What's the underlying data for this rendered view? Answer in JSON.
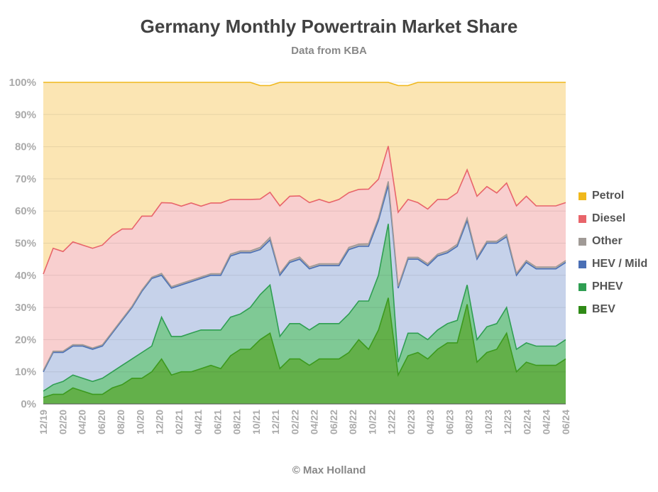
{
  "chart_data": {
    "type": "area",
    "title": "Germany Monthly Powertrain Market Share",
    "subtitle": "Data from KBA",
    "footer": "© Max Holland",
    "y_ticks": [
      "0%",
      "10%",
      "20%",
      "30%",
      "40%",
      "50%",
      "60%",
      "70%",
      "80%",
      "90%",
      "100%"
    ],
    "ylim": [
      0,
      100
    ],
    "x_ticks": [
      "12/19",
      "02/20",
      "04/20",
      "06/20",
      "08/20",
      "10/20",
      "12/20",
      "02/21",
      "04/21",
      "06/21",
      "08/21",
      "10/21",
      "12/21",
      "02/22",
      "04/22",
      "06/22",
      "08/22",
      "10/22",
      "12/22",
      "02/23",
      "04/23",
      "06/23",
      "08/23",
      "10/23",
      "12/23",
      "02/24",
      "04/24",
      "06/24"
    ],
    "grid": true,
    "legend_position": "right",
    "stacked": true,
    "series": [
      {
        "name": "BEV",
        "color": "#3c9a1e",
        "fill": "#63b04a",
        "values": [
          2,
          3,
          3,
          5,
          4,
          3,
          3,
          5,
          6,
          8,
          8,
          10,
          14,
          9,
          10,
          10,
          11,
          12,
          11,
          15,
          17,
          17,
          20,
          22,
          11,
          14,
          14,
          12,
          14,
          14,
          14,
          16,
          20,
          17,
          23,
          33,
          9,
          15,
          16,
          14,
          17,
          19,
          19,
          31,
          13,
          16,
          17,
          22,
          10,
          13,
          12,
          12,
          12,
          14
        ]
      },
      {
        "name": "PHEV",
        "color": "#2f9e52",
        "fill": "#7fc995",
        "values": [
          2,
          3,
          4,
          4,
          4,
          4,
          5,
          5,
          6,
          6,
          8,
          8,
          13,
          12,
          11,
          12,
          12,
          11,
          12,
          12,
          11,
          13,
          14,
          15,
          10,
          11,
          11,
          11,
          11,
          11,
          11,
          12,
          12,
          15,
          17,
          23,
          4,
          7,
          6,
          6,
          6,
          6,
          7,
          6,
          7,
          8,
          8,
          8,
          7,
          6,
          6,
          6,
          6,
          6
        ]
      },
      {
        "name": "HEV / Mild",
        "color": "#4a6fb5",
        "fill": "#c6d2ea",
        "values": [
          6,
          10,
          9,
          9,
          10,
          10,
          10,
          12,
          14,
          16,
          19,
          21,
          13,
          15,
          16,
          16,
          16,
          17,
          17,
          19,
          19,
          17,
          14,
          14,
          19,
          19,
          20,
          19,
          18,
          18,
          18,
          20,
          17,
          17,
          17,
          12,
          23,
          23,
          23,
          23,
          23,
          22,
          23,
          20,
          25,
          26,
          25,
          22,
          23,
          25,
          24,
          24,
          24,
          24
        ]
      },
      {
        "name": "Other",
        "color": "#a09a96",
        "fill": "#b6aeab",
        "values": [
          0.4,
          0.4,
          0.4,
          0.4,
          0.4,
          0.4,
          0.4,
          0.4,
          0.4,
          0.4,
          0.4,
          0.4,
          0.6,
          0.5,
          0.5,
          0.5,
          0.5,
          0.5,
          0.5,
          0.6,
          0.6,
          0.6,
          0.7,
          0.8,
          0.6,
          0.6,
          0.7,
          0.6,
          0.6,
          0.6,
          0.6,
          0.7,
          0.7,
          0.8,
          0.9,
          1.2,
          0.6,
          0.6,
          0.6,
          0.6,
          0.6,
          0.6,
          0.7,
          0.8,
          0.6,
          0.6,
          0.6,
          0.7,
          0.6,
          0.6,
          0.6,
          0.6,
          0.6,
          0.6
        ]
      },
      {
        "name": "Diesel",
        "color": "#e8646a",
        "fill": "#f8cfcf",
        "values": [
          30,
          32,
          31,
          32,
          31,
          31,
          31,
          30,
          28,
          24,
          23,
          19,
          22,
          26,
          24,
          24,
          22,
          22,
          22,
          17,
          16,
          16,
          15,
          14,
          21,
          20,
          19,
          20,
          20,
          19,
          20,
          17,
          17,
          17,
          12,
          11,
          23,
          18,
          17,
          17,
          17,
          16,
          16,
          15,
          19,
          17,
          15,
          16,
          21,
          20,
          19,
          19,
          19,
          18
        ]
      },
      {
        "name": "Petrol",
        "color": "#f0b81c",
        "fill": "#fbe5b3",
        "values": [
          59.6,
          51.6,
          52.6,
          49.6,
          50.6,
          51.6,
          50.6,
          47.6,
          45.6,
          45.6,
          41.6,
          41.6,
          37.4,
          37.5,
          38.5,
          37.5,
          38.5,
          37.5,
          37.5,
          36.4,
          36.4,
          36.4,
          35.3,
          33.2,
          38.4,
          35.4,
          35.3,
          37.4,
          36.4,
          37.4,
          36.4,
          34.3,
          33.3,
          33.2,
          30.1,
          19.8,
          39.4,
          35.4,
          37.4,
          39.4,
          36.4,
          36.4,
          34.3,
          27.2,
          35.4,
          32.4,
          34.4,
          31.3,
          38.4,
          35.4,
          38.4,
          38.4,
          38.4,
          37.4
        ]
      }
    ]
  }
}
